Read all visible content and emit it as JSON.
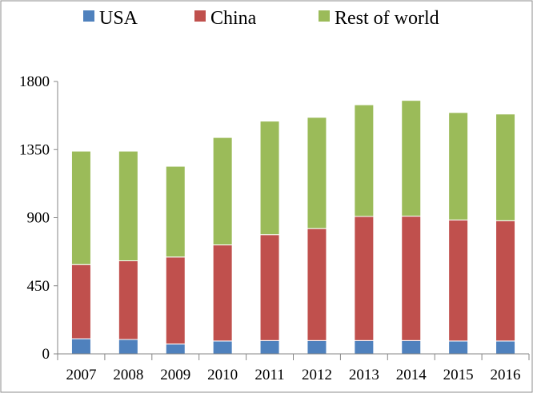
{
  "chart_data": {
    "type": "bar",
    "stacked": true,
    "title": "",
    "xlabel": "",
    "ylabel": "",
    "categories": [
      "2007",
      "2008",
      "2009",
      "2010",
      "2011",
      "2012",
      "2013",
      "2014",
      "2015",
      "2016"
    ],
    "series": [
      {
        "name": "USA",
        "color": "#4f81bd",
        "values": [
          100,
          95,
          65,
          85,
          88,
          88,
          88,
          88,
          85,
          85
        ]
      },
      {
        "name": "China",
        "color": "#c0504d",
        "values": [
          490,
          520,
          575,
          635,
          700,
          740,
          820,
          822,
          800,
          795
        ]
      },
      {
        "name": "Rest of world",
        "color": "#9bbb59",
        "values": [
          750,
          725,
          600,
          710,
          750,
          735,
          738,
          765,
          710,
          705
        ]
      }
    ],
    "ylim": [
      0,
      1800
    ],
    "yticks": [
      0,
      450,
      900,
      1350,
      1800
    ],
    "yticks_labels": [
      "0",
      "450",
      "900",
      "1350",
      "1800"
    ],
    "grid": false,
    "legend_position": "top"
  }
}
